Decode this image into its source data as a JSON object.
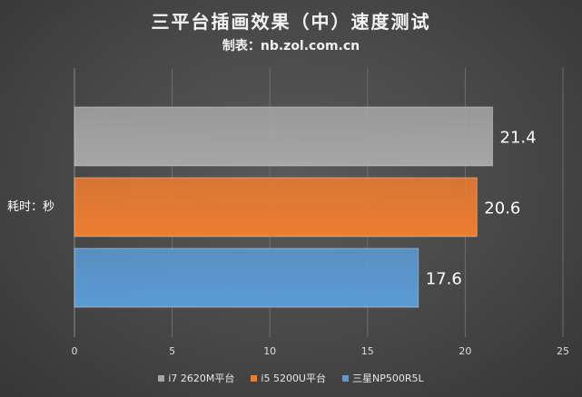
{
  "title": "三平台插画效果（中）速度测试",
  "subtitle": "制表：nb.zol.com.cn",
  "chart_data": {
    "type": "bar",
    "orientation": "horizontal",
    "title": "三平台插画效果（中）速度测试",
    "subtitle": "制表：nb.zol.com.cn",
    "categories": [
      "耗时：秒"
    ],
    "ylabel": "耗时：秒",
    "xlim": [
      0,
      25
    ],
    "xticks": [
      0,
      5,
      10,
      15,
      20,
      25
    ],
    "grid": true,
    "legend_position": "bottom",
    "series": [
      {
        "name": "i7 2620M平台",
        "values": [
          21.4
        ],
        "color": "#a6a6a6",
        "label": "21.4"
      },
      {
        "name": "i5 5200U平台",
        "values": [
          20.6
        ],
        "color": "#ed7d31",
        "label": "20.6"
      },
      {
        "name": "三星NP500R5L",
        "values": [
          17.6
        ],
        "color": "#5b9bd5",
        "label": "17.6"
      }
    ]
  }
}
